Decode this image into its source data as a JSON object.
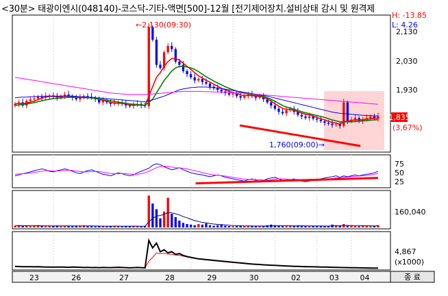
{
  "title": "<30분> 태광이엔시(048140)-코스닥-기타-액면[500]-12월 [전기제어장치.설비상태 감시 및 원격제",
  "header_stats": {
    "high": "H: -13.85",
    "low": "L: 4.26"
  },
  "colors": {
    "up": "#ff0000",
    "down": "#0000ff",
    "ma_short": "#ff0000",
    "ma_mid": "#008000",
    "ma_long": "#0000ff",
    "ma_longest": "#ff00ff",
    "trend": "#ff0000"
  },
  "chart_data": [
    {
      "type": "candlestick",
      "panel": "price",
      "y_ticks": [
        "2,130",
        "2,030",
        "1,930"
      ],
      "ylim": [
        1730,
        2150
      ],
      "annotations": {
        "high": "←2,130(09:30)",
        "low": "1,760(09:00)→"
      },
      "current_price": "1,835",
      "current_change": "(3,67%)",
      "closes": [
        1875,
        1880,
        1870,
        1885,
        1890,
        1892,
        1898,
        1895,
        1900,
        1902,
        1898,
        1895,
        1900,
        1905,
        1900,
        1895,
        1890,
        1895,
        1900,
        1898,
        1895,
        1890,
        1880,
        1885,
        1880,
        1875,
        1878,
        1880,
        1875,
        1870,
        1868,
        1872,
        1875,
        1870,
        1868,
        2120,
        2080,
        2000,
        1990,
        2040,
        2060,
        2050,
        2010,
        2000,
        1980,
        1970,
        1960,
        1950,
        1955,
        1945,
        1940,
        1930,
        1925,
        1920,
        1915,
        1910,
        1905,
        1908,
        1900,
        1895,
        1900,
        1905,
        1900,
        1895,
        1898,
        1890,
        1880,
        1870,
        1860,
        1850,
        1845,
        1855,
        1860,
        1850,
        1840,
        1835,
        1830,
        1835,
        1828,
        1825,
        1820,
        1815,
        1812,
        1808,
        1810,
        1805,
        1880,
        1820,
        1825,
        1830,
        1820,
        1825,
        1830,
        1835,
        1828,
        1835
      ],
      "ma": [
        {
          "name": "short",
          "values": [
            1875,
            1877,
            1876,
            1878,
            1881,
            1884,
            1889,
            1893,
            1897,
            1899,
            1899,
            1898,
            1898,
            1900,
            1900,
            1900,
            1898,
            1897,
            1897,
            1896,
            1895,
            1893,
            1889,
            1887,
            1884,
            1880,
            1878,
            1877,
            1877,
            1875,
            1872,
            1871,
            1871,
            1871,
            1870,
            1900,
            1930,
            1960,
            1975,
            1995,
            2010,
            2020,
            2020,
            2015,
            2005,
            1995,
            1985,
            1975,
            1965,
            1958,
            1950,
            1945,
            1938,
            1932,
            1925,
            1920,
            1915,
            1912,
            1908,
            1904,
            1902,
            1902,
            1902,
            1900,
            1899,
            1896,
            1891,
            1884,
            1876,
            1868,
            1861,
            1858,
            1857,
            1855,
            1850,
            1846,
            1842,
            1840,
            1836,
            1832,
            1828,
            1824,
            1820,
            1816,
            1814,
            1810,
            1818,
            1820,
            1822,
            1824,
            1824,
            1825,
            1826,
            1828,
            1829,
            1830
          ]
        },
        {
          "name": "mid",
          "values": [
            1870,
            1872,
            1873,
            1875,
            1877,
            1879,
            1882,
            1885,
            1888,
            1890,
            1892,
            1893,
            1894,
            1895,
            1896,
            1896,
            1896,
            1896,
            1895,
            1895,
            1894,
            1893,
            1891,
            1889,
            1887,
            1885,
            1883,
            1881,
            1879,
            1877,
            1875,
            1874,
            1873,
            1872,
            1871,
            1880,
            1890,
            1910,
            1930,
            1950,
            1965,
            1980,
            1990,
            1995,
            1995,
            1993,
            1990,
            1985,
            1978,
            1970,
            1962,
            1955,
            1948,
            1942,
            1936,
            1930,
            1925,
            1920,
            1916,
            1912,
            1909,
            1907,
            1905,
            1903,
            1901,
            1899,
            1895,
            1890,
            1884,
            1877,
            1870,
            1865,
            1862,
            1858,
            1854,
            1850,
            1847,
            1844,
            1841,
            1838,
            1835,
            1832,
            1828,
            1824,
            1821,
            1818,
            1818,
            1818,
            1818,
            1819,
            1820,
            1821,
            1822,
            1823,
            1824,
            1825
          ]
        },
        {
          "name": "long",
          "values": [
            1895,
            1896,
            1897,
            1897,
            1898,
            1898,
            1899,
            1899,
            1900,
            1900,
            1900,
            1900,
            1900,
            1900,
            1900,
            1899,
            1899,
            1898,
            1898,
            1897,
            1896,
            1895,
            1894,
            1893,
            1892,
            1891,
            1890,
            1889,
            1888,
            1887,
            1886,
            1885,
            1884,
            1883,
            1882,
            1885,
            1888,
            1892,
            1896,
            1900,
            1905,
            1910,
            1915,
            1920,
            1923,
            1925,
            1927,
            1928,
            1929,
            1929,
            1929,
            1928,
            1927,
            1926,
            1924,
            1922,
            1920,
            1918,
            1916,
            1914,
            1912,
            1910,
            1908,
            1906,
            1904,
            1902,
            1900,
            1897,
            1894,
            1891,
            1888,
            1885,
            1882,
            1879,
            1876,
            1873,
            1870,
            1867,
            1864,
            1861,
            1858,
            1855,
            1852,
            1849,
            1847,
            1845,
            1844,
            1843,
            1842,
            1841,
            1840,
            1839,
            1838,
            1838,
            1837,
            1837
          ]
        },
        {
          "name": "longest",
          "values": [
            1960,
            1958,
            1956,
            1954,
            1952,
            1950,
            1948,
            1946,
            1944,
            1942,
            1940,
            1938,
            1936,
            1934,
            1932,
            1930,
            1928,
            1926,
            1924,
            1922,
            1920,
            1918,
            1916,
            1914,
            1912,
            1910,
            1909,
            1908,
            1907,
            1906,
            1905,
            1905,
            1905,
            1905,
            1905,
            1906,
            1907,
            1908,
            1909,
            1910,
            1911,
            1912,
            1913,
            1914,
            1915,
            1915,
            1915,
            1915,
            1915,
            1915,
            1914,
            1914,
            1913,
            1913,
            1912,
            1912,
            1911,
            1911,
            1910,
            1910,
            1909,
            1908,
            1907,
            1906,
            1905,
            1904,
            1903,
            1902,
            1901,
            1900,
            1899,
            1898,
            1897,
            1896,
            1895,
            1894,
            1893,
            1892,
            1891,
            1890,
            1889,
            1888,
            1887,
            1886,
            1885,
            1884,
            1883,
            1882,
            1881,
            1880,
            1879,
            1878,
            1877,
            1876,
            1875,
            1874
          ]
        }
      ]
    },
    {
      "type": "line",
      "panel": "oscillator",
      "y_ticks": [
        "75",
        "50",
        "25"
      ],
      "ylim": [
        0,
        100
      ],
      "series": [
        {
          "values": [
            35,
            38,
            42,
            45,
            48,
            52,
            55,
            58,
            55,
            50,
            48,
            52,
            55,
            58,
            55,
            50,
            45,
            42,
            48,
            52,
            55,
            50,
            45,
            40,
            38,
            35,
            40,
            45,
            42,
            38,
            35,
            38,
            45,
            50,
            55,
            60,
            70,
            75,
            72,
            65,
            60,
            55,
            58,
            62,
            55,
            50,
            45,
            42,
            40,
            38,
            35,
            32,
            35,
            38,
            35,
            30,
            28,
            25,
            22,
            20,
            18,
            22,
            25,
            20,
            18,
            20,
            25,
            28,
            30,
            25,
            20,
            18,
            22,
            25,
            20,
            18,
            15,
            18,
            20,
            22,
            25,
            28,
            30,
            32,
            35,
            30,
            35,
            32,
            35,
            38,
            35,
            38,
            40,
            42,
            45,
            50
          ]
        },
        {
          "values": [
            40,
            41,
            42,
            43,
            44,
            46,
            48,
            50,
            52,
            52,
            51,
            51,
            52,
            53,
            54,
            53,
            51,
            49,
            48,
            48,
            49,
            50,
            49,
            47,
            45,
            43,
            42,
            42,
            43,
            42,
            41,
            40,
            40,
            42,
            45,
            50,
            56,
            62,
            66,
            67,
            66,
            64,
            62,
            61,
            60,
            58,
            55,
            52,
            49,
            46,
            43,
            40,
            38,
            37,
            36,
            34,
            32,
            30,
            28,
            26,
            24,
            23,
            23,
            23,
            22,
            21,
            21,
            22,
            24,
            25,
            25,
            24,
            23,
            23,
            23,
            22,
            21,
            20,
            19,
            19,
            20,
            22,
            24,
            26,
            28,
            29,
            30,
            31,
            32,
            33,
            34,
            35,
            36,
            38,
            40,
            43
          ]
        }
      ],
      "trend_line": {
        "from": [
          58,
          10
        ],
        "to": [
          95,
          28
        ]
      }
    },
    {
      "type": "bar",
      "panel": "volume",
      "y_ticks": [
        "160,040"
      ],
      "ylim": [
        0,
        300000
      ],
      "values": [
        15000,
        20000,
        12000,
        18000,
        10000,
        15000,
        20000,
        12000,
        10000,
        15000,
        12000,
        18000,
        10000,
        12000,
        15000,
        10000,
        12000,
        15000,
        18000,
        10000,
        12000,
        8000,
        10000,
        12000,
        8000,
        10000,
        15000,
        12000,
        8000,
        10000,
        12000,
        15000,
        10000,
        8000,
        12000,
        280000,
        210000,
        160000,
        80000,
        140000,
        260000,
        120000,
        90000,
        60000,
        40000,
        30000,
        25000,
        20000,
        30000,
        25000,
        35000,
        20000,
        15000,
        20000,
        25000,
        15000,
        12000,
        10000,
        12000,
        15000,
        10000,
        12000,
        15000,
        10000,
        12000,
        15000,
        20000,
        25000,
        20000,
        15000,
        12000,
        10000,
        15000,
        12000,
        18000,
        15000,
        12000,
        10000,
        15000,
        12000,
        10000,
        12000,
        15000,
        25000,
        20000,
        15000,
        30000,
        20000,
        15000,
        12000,
        10000,
        15000,
        12000,
        10000,
        12000,
        20000
      ],
      "ma": [
        15000,
        15500,
        15000,
        15500,
        15000,
        15000,
        15500,
        15000,
        14500,
        14500,
        14000,
        14500,
        14000,
        14000,
        14000,
        13500,
        13500,
        14000,
        14000,
        13500,
        13000,
        12500,
        12000,
        12000,
        11500,
        11500,
        12000,
        12000,
        11500,
        11500,
        11500,
        12000,
        11500,
        11000,
        11500,
        50000,
        80000,
        100000,
        105000,
        115000,
        130000,
        128000,
        120000,
        110000,
        95000,
        85000,
        72000,
        60000,
        52000,
        45000,
        40000,
        34000,
        30000,
        27000,
        25000,
        22000,
        19000,
        17000,
        16000,
        15000,
        14000,
        13500,
        13000,
        12500,
        12500,
        12500,
        13000,
        14000,
        15000,
        15500,
        15500,
        15000,
        15000,
        14500,
        15000,
        15000,
        14500,
        14000,
        14000,
        13500,
        13000,
        12500,
        12500,
        14000,
        15000,
        15000,
        17000,
        17500,
        17000,
        16500,
        16000,
        15500,
        15000,
        14500,
        14000,
        15000
      ]
    },
    {
      "type": "line",
      "panel": "indicator",
      "y_ticks": [
        "4,867"
      ],
      "unit_label": "(x1000)",
      "ylim": [
        0,
        9500
      ],
      "values": [
        600,
        550,
        500,
        500,
        520,
        480,
        500,
        450,
        400,
        420,
        380,
        400,
        420,
        380,
        350,
        400,
        380,
        350,
        300,
        320,
        280,
        300,
        250,
        300,
        280,
        250,
        300,
        350,
        300,
        250,
        200,
        250,
        300,
        250,
        200,
        7500,
        5500,
        6800,
        4500,
        5000,
        4200,
        4500,
        3800,
        4000,
        3500,
        3200,
        3000,
        2800,
        2600,
        2500,
        2400,
        2300,
        2200,
        2100,
        2000,
        1900,
        1800,
        1700,
        1600,
        1500,
        1400,
        1300,
        1200,
        1150,
        1100,
        1000,
        950,
        900,
        850,
        800,
        750,
        700,
        650,
        600,
        580,
        550,
        520,
        500,
        480,
        450,
        420,
        400,
        380,
        350,
        330,
        300,
        280,
        260,
        240,
        220,
        200,
        180,
        160,
        150,
        140,
        130
      ],
      "values2": [
        500,
        480,
        470,
        460,
        450,
        440,
        430,
        420,
        410,
        400,
        390,
        380,
        370,
        360,
        350,
        340,
        330,
        320,
        310,
        300,
        290,
        280,
        270,
        260,
        250,
        240,
        235,
        230,
        225,
        220,
        215,
        210,
        205,
        200,
        195,
        2000,
        3000,
        4200,
        4000,
        4100,
        3900,
        3800,
        3600,
        3500,
        3300,
        3100,
        2900,
        2700,
        2550,
        2400,
        2300,
        2200,
        2100,
        2000,
        1900,
        1800,
        1700,
        1600,
        1500,
        1400,
        1300,
        1250,
        1200,
        1150,
        1100,
        1050,
        1000,
        950,
        900,
        850,
        800,
        750,
        700,
        650,
        620,
        590,
        560,
        530,
        500,
        480,
        460,
        440,
        420,
        400,
        380,
        360,
        340,
        320,
        300,
        280,
        260,
        240,
        220,
        200,
        180,
        160
      ]
    }
  ],
  "x_axis": {
    "labels": [
      "23",
      "26",
      "27",
      "28",
      "29",
      "30",
      "02",
      "03",
      "04"
    ],
    "closing_label": "종 료"
  }
}
